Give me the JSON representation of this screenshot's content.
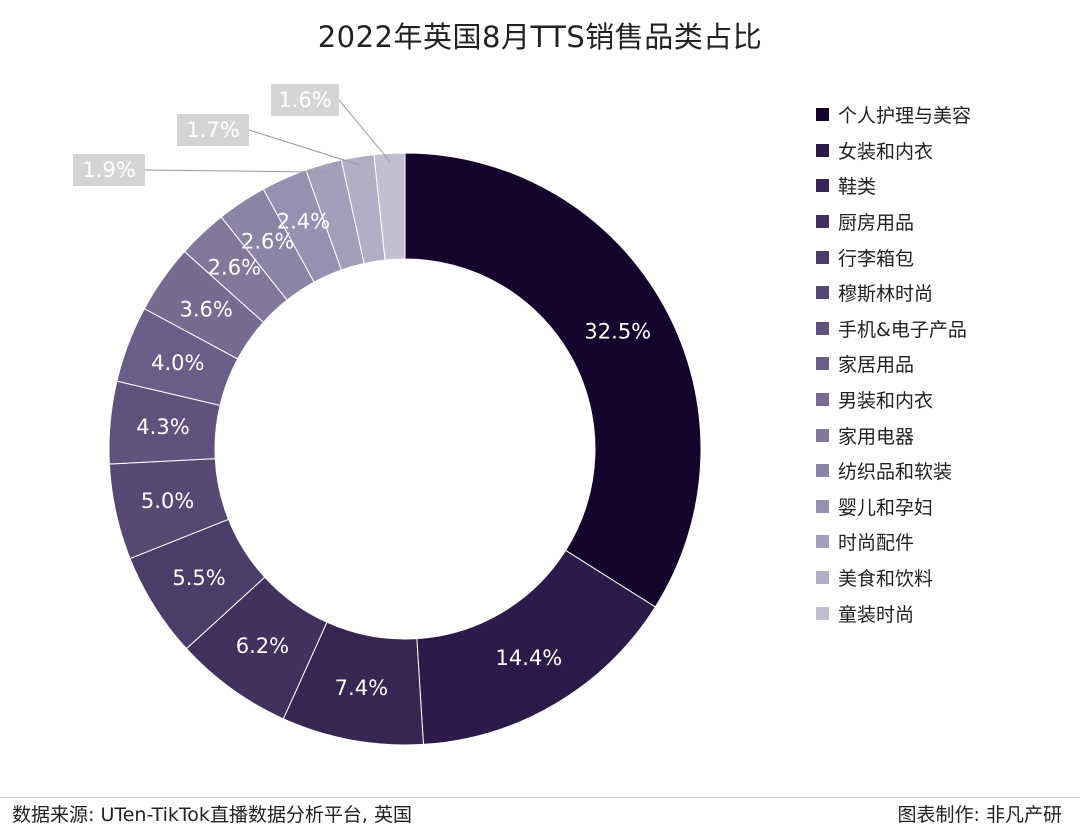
{
  "chart_data": {
    "type": "pie",
    "variant": "donut",
    "title": "2022年英国8月TTS销售品类占比",
    "categories": [
      "个人护理与美容",
      "女装和内衣",
      "鞋类",
      "厨房用品",
      "行李箱包",
      "穆斯林时尚",
      "手机&电子产品",
      "家居用品",
      "男装和内衣",
      "家用电器",
      "纺织品和软装",
      "婴儿和孕妇",
      "时尚配件",
      "美食和饮料",
      "童装时尚"
    ],
    "values": [
      32.5,
      14.4,
      7.4,
      6.2,
      5.5,
      5.0,
      4.3,
      4.0,
      3.6,
      2.6,
      2.6,
      2.4,
      1.9,
      1.7,
      1.6
    ],
    "labels": [
      "32.5%",
      "14.4%",
      "7.4%",
      "6.2%",
      "5.5%",
      "5.0%",
      "4.3%",
      "4.0%",
      "3.6%",
      "2.6%",
      "2.6%",
      "2.4%",
      "1.9%",
      "1.7%",
      "1.6%"
    ],
    "colors": [
      "#15052e",
      "#2c1b4a",
      "#362654",
      "#40315e",
      "#4b3d69",
      "#554974",
      "#5f537e",
      "#695e87",
      "#766c92",
      "#81789c",
      "#8b84a5",
      "#9890b0",
      "#a59eba",
      "#b3adc6",
      "#c3bfd2"
    ],
    "legend_position": "right"
  },
  "footer": {
    "source": "数据来源: UTen-TikTok直播数据分析平台, 英国",
    "credit": "图表制作: 非凡产研"
  }
}
